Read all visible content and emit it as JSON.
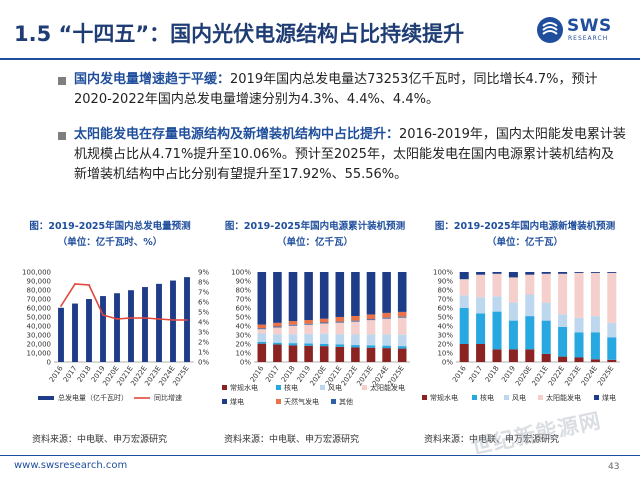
{
  "header": {
    "title": "1.5 “十四五”：国内光伏电源结构占比持续提升",
    "logo_text": "SWS",
    "logo_sub": "RESEARCH"
  },
  "bullets": [
    {
      "highlight": "国内发电量增速趋于平缓：",
      "text": "2019年国内总发电量达73253亿千瓦时，同比增长4.7%，预计2020-2022年国内总发电量增速分别为4.3%、4.4%、4.4%。"
    },
    {
      "highlight": "太阳能发电在存量电源结构及新增装机结构中占比提升：",
      "text": "2016-2019年，国内太阳能发电累计装机规模占比从4.71%提升至10.06%。预计至2025年，太阳能发电在国内电源累计装机结构及新增装机结构中占比分别有望提升至17.92%、55.56%。"
    }
  ],
  "chart_data": [
    {
      "type": "bar",
      "title": "图：2019-2025年国内总发电量预测",
      "unit": "（单位：亿千瓦时、%）",
      "categories": [
        "2016",
        "2017",
        "2018",
        "2019",
        "2020E",
        "2021E",
        "2022E",
        "2023E",
        "2024E",
        "2025E"
      ],
      "series": [
        {
          "name": "总发电量（亿千瓦时）",
          "type": "bar",
          "axis": "left",
          "color": "#1f3c88",
          "values": [
            60228,
            64951,
            69947,
            73253,
            76403,
            79765,
            83275,
            86856,
            90504,
            94305
          ]
        },
        {
          "name": "同比增速",
          "type": "line",
          "axis": "right",
          "color": "#e0463c",
          "values": [
            5.6,
            7.8,
            7.7,
            4.7,
            4.3,
            4.4,
            4.4,
            4.3,
            4.2,
            4.2
          ]
        }
      ],
      "ylim_left": [
        0,
        100000
      ],
      "yticks_left": [
        "0",
        "10,000",
        "20,000",
        "30,000",
        "40,000",
        "50,000",
        "60,000",
        "70,000",
        "80,000",
        "90,000",
        "100,000"
      ],
      "ylim_right": [
        0,
        9
      ],
      "yticks_right": [
        "0%",
        "1%",
        "2%",
        "3%",
        "4%",
        "5%",
        "6%",
        "7%",
        "8%",
        "9%"
      ],
      "legend": [
        "总发电量（亿千瓦时）",
        "同比增速"
      ],
      "source": "资料来源：中电联、申万宏源研究"
    },
    {
      "type": "bar",
      "stacked": true,
      "title": "图：2019-2025年国内电源累计装机预测",
      "unit": "（单位：亿千瓦）",
      "categories": [
        "2016",
        "2017",
        "2018",
        "2019",
        "2020E",
        "2021E",
        "2022E",
        "2023E",
        "2024E",
        "2025E"
      ],
      "series": [
        {
          "name": "煤电",
          "color": "#1f3c88",
          "values": [
            57,
            55,
            53,
            52,
            50,
            48,
            47,
            45,
            43,
            42
          ]
        },
        {
          "name": "天然气发电",
          "color": "#e8734a",
          "values": [
            4,
            4,
            4,
            4,
            4,
            5,
            5,
            5,
            5,
            5
          ]
        },
        {
          "name": "其他",
          "color": "#2e5fa8",
          "values": [
            1,
            1,
            1,
            1,
            1,
            1,
            1,
            1,
            1,
            1
          ]
        },
        {
          "name": "太阳能发电",
          "color": "#f4cfcc",
          "values": [
            4.71,
            7.3,
            9.2,
            10.06,
            11,
            12.4,
            13.8,
            15.1,
            16.5,
            17.92
          ]
        },
        {
          "name": "风电",
          "color": "#bcd7ee",
          "values": [
            9,
            9.2,
            9.7,
            10.4,
            10.8,
            11,
            11.3,
            11.6,
            11.9,
            12.1
          ]
        },
        {
          "name": "核电",
          "color": "#28a8e0",
          "values": [
            2,
            2,
            2.4,
            2.4,
            2.5,
            2.5,
            2.5,
            2.6,
            2.6,
            2.6
          ]
        },
        {
          "name": "常规水电",
          "color": "#8b2323",
          "values": [
            19.9,
            18.9,
            18.0,
            17.6,
            17.0,
            16.2,
            15.6,
            15.1,
            14.6,
            14.1
          ]
        }
      ],
      "ylim": [
        0,
        100
      ],
      "yticks": [
        "0%",
        "10%",
        "20%",
        "30%",
        "40%",
        "50%",
        "60%",
        "70%",
        "80%",
        "90%",
        "100%"
      ],
      "legend": [
        "常规水电",
        "核电",
        "风电",
        "太阳能发电",
        "煤电",
        "天然气发电",
        "其他"
      ],
      "source": "资料来源：中电联、申万宏源研究"
    },
    {
      "type": "bar",
      "stacked": true,
      "title": "图：2019-2025年国内电源新增装机预测",
      "unit": "（单位：亿千瓦）",
      "categories": [
        "2016",
        "2017",
        "2018",
        "2019",
        "2020E",
        "2021E",
        "2022E",
        "2023E",
        "2024E",
        "2025E"
      ],
      "series": [
        {
          "name": "煤电",
          "color": "#1f3c88",
          "values": [
            8,
            3,
            2,
            6,
            3,
            2,
            2,
            1,
            1,
            1
          ]
        },
        {
          "name": "太阳能发电",
          "color": "#f4cfcc",
          "values": [
            18,
            25,
            25,
            28,
            22,
            32,
            45,
            50,
            48,
            55.56
          ]
        },
        {
          "name": "风电",
          "color": "#bcd7ee",
          "values": [
            14,
            18,
            17,
            20,
            24,
            20,
            14,
            16,
            18,
            16
          ]
        },
        {
          "name": "核电",
          "color": "#28a8e0",
          "values": [
            40,
            34,
            42,
            32,
            37,
            37,
            33,
            28,
            30,
            25
          ]
        },
        {
          "name": "常规水电",
          "color": "#8b2323",
          "values": [
            20,
            20,
            14,
            14,
            14,
            9,
            6,
            5,
            3,
            2.44
          ]
        }
      ],
      "ylim": [
        0,
        100
      ],
      "yticks": [
        "0%",
        "10%",
        "20%",
        "30%",
        "40%",
        "50%",
        "60%",
        "70%",
        "80%",
        "90%",
        "100%"
      ],
      "legend": [
        "常规水电",
        "核电",
        "风电",
        "太阳能发电",
        "煤电"
      ],
      "source": "资料来源：中电联、申万宏源研究"
    }
  ],
  "footer": {
    "url": "www.swsresearch.com",
    "page": "43",
    "watermark": "世纪新能源网"
  }
}
